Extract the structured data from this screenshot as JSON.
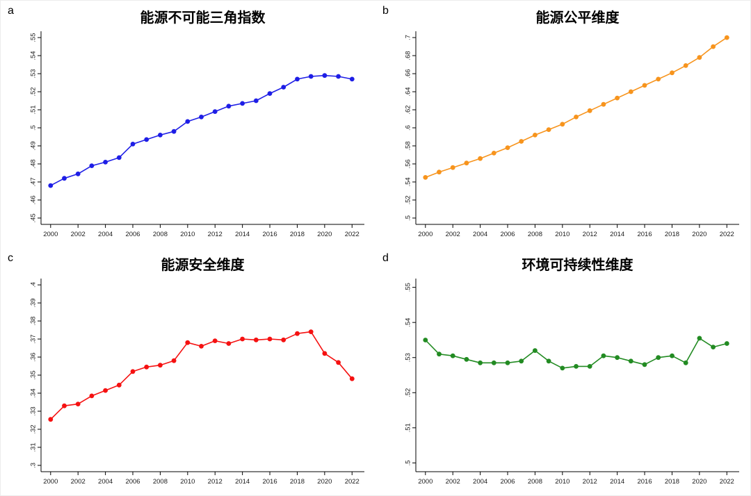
{
  "page": {
    "background": "#ffffff",
    "axis_color": "#000000",
    "tick_label_color": "#1a1a1a"
  },
  "chart_data": [
    {
      "type": "line",
      "panel_label": "a",
      "title": "能源不可能三角指数",
      "color": "#1e1ee6",
      "legend": "none",
      "grid": false,
      "xlim": [
        1999.3,
        2022.9
      ],
      "ylim": [
        0.4465,
        0.5535
      ],
      "xticks": [
        2000,
        2002,
        2004,
        2006,
        2008,
        2010,
        2012,
        2014,
        2016,
        2018,
        2020,
        2022
      ],
      "yticks": [
        0.45,
        0.46,
        0.47,
        0.48,
        0.49,
        0.5,
        0.51,
        0.52,
        0.53,
        0.54,
        0.55
      ],
      "x": [
        2000,
        2001,
        2002,
        2003,
        2004,
        2005,
        2006,
        2007,
        2008,
        2009,
        2010,
        2011,
        2012,
        2013,
        2014,
        2015,
        2016,
        2017,
        2018,
        2019,
        2020,
        2021,
        2022
      ],
      "values": [
        0.468,
        0.472,
        0.4745,
        0.479,
        0.481,
        0.4835,
        0.491,
        0.4935,
        0.496,
        0.498,
        0.5035,
        0.506,
        0.509,
        0.512,
        0.5135,
        0.515,
        0.519,
        0.5225,
        0.527,
        0.5285,
        0.529,
        0.5285,
        0.527
      ]
    },
    {
      "type": "line",
      "panel_label": "b",
      "title": "能源公平维度",
      "color": "#f7941d",
      "legend": "none",
      "grid": false,
      "xlim": [
        1999.3,
        2022.9
      ],
      "ylim": [
        0.493,
        0.707
      ],
      "xticks": [
        2000,
        2002,
        2004,
        2006,
        2008,
        2010,
        2012,
        2014,
        2016,
        2018,
        2020,
        2022
      ],
      "yticks": [
        0.5,
        0.52,
        0.54,
        0.56,
        0.58,
        0.6,
        0.62,
        0.64,
        0.66,
        0.68,
        0.7
      ],
      "x": [
        2000,
        2001,
        2002,
        2003,
        2004,
        2005,
        2006,
        2007,
        2008,
        2009,
        2010,
        2011,
        2012,
        2013,
        2014,
        2015,
        2016,
        2017,
        2018,
        2019,
        2020,
        2021,
        2022
      ],
      "values": [
        0.545,
        0.551,
        0.556,
        0.561,
        0.566,
        0.572,
        0.578,
        0.585,
        0.592,
        0.598,
        0.604,
        0.612,
        0.619,
        0.626,
        0.633,
        0.64,
        0.647,
        0.654,
        0.661,
        0.669,
        0.678,
        0.69,
        0.7
      ]
    },
    {
      "type": "line",
      "panel_label": "c",
      "title": "能源安全维度",
      "color": "#f51111",
      "legend": "none",
      "grid": false,
      "xlim": [
        1999.3,
        2022.9
      ],
      "ylim": [
        0.2965,
        0.4035
      ],
      "xticks": [
        2000,
        2002,
        2004,
        2006,
        2008,
        2010,
        2012,
        2014,
        2016,
        2018,
        2020,
        2022
      ],
      "yticks": [
        0.3,
        0.31,
        0.32,
        0.33,
        0.34,
        0.35,
        0.36,
        0.37,
        0.38,
        0.39,
        0.4
      ],
      "x": [
        2000,
        2001,
        2002,
        2003,
        2004,
        2005,
        2006,
        2007,
        2008,
        2009,
        2010,
        2011,
        2012,
        2013,
        2014,
        2015,
        2016,
        2017,
        2018,
        2019,
        2020,
        2021,
        2022
      ],
      "values": [
        0.3255,
        0.333,
        0.334,
        0.3385,
        0.3415,
        0.3445,
        0.352,
        0.3545,
        0.3555,
        0.358,
        0.368,
        0.366,
        0.369,
        0.3675,
        0.37,
        0.3695,
        0.37,
        0.3695,
        0.373,
        0.374,
        0.362,
        0.357,
        0.348
      ]
    },
    {
      "type": "line",
      "panel_label": "d",
      "title": "环境可持续性维度",
      "color": "#228B22",
      "legend": "none",
      "grid": false,
      "xlim": [
        1999.3,
        2022.9
      ],
      "ylim": [
        0.4975,
        0.5525
      ],
      "xticks": [
        2000,
        2002,
        2004,
        2006,
        2008,
        2010,
        2012,
        2014,
        2016,
        2018,
        2020,
        2022
      ],
      "yticks": [
        0.5,
        0.51,
        0.52,
        0.53,
        0.54,
        0.55
      ],
      "x": [
        2000,
        2001,
        2002,
        2003,
        2004,
        2005,
        2006,
        2007,
        2008,
        2009,
        2010,
        2011,
        2012,
        2013,
        2014,
        2015,
        2016,
        2017,
        2018,
        2019,
        2020,
        2021,
        2022
      ],
      "values": [
        0.535,
        0.531,
        0.5305,
        0.5295,
        0.5285,
        0.5285,
        0.5285,
        0.529,
        0.532,
        0.529,
        0.527,
        0.5275,
        0.5275,
        0.5305,
        0.53,
        0.529,
        0.528,
        0.53,
        0.5305,
        0.5285,
        0.5355,
        0.533,
        0.534
      ]
    }
  ]
}
